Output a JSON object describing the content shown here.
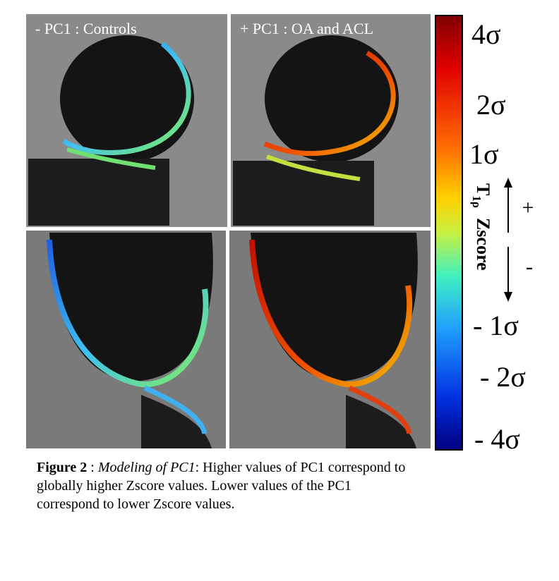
{
  "figure": {
    "panels": [
      {
        "label": "- PC1 : Controls"
      },
      {
        "label": "+ PC1 : OA and ACL"
      }
    ],
    "colorbar": {
      "ticks": [
        "4σ",
        "2σ",
        "1σ",
        "- 1σ",
        "- 2σ",
        "- 4σ"
      ],
      "axis_label": {
        "main": "T",
        "sub": "1ρ",
        "rest": "Zscore"
      },
      "up_sign": "+",
      "down_sign": "-"
    },
    "caption": {
      "label": "Figure 2",
      "separator": " : ",
      "italic": "Modeling of PC1",
      "lines": [
        ": Higher values of PC1 correspond to",
        "globally higher Zscore values. Lower values of the PC1",
        "correspond to lower Zscore values."
      ]
    }
  }
}
